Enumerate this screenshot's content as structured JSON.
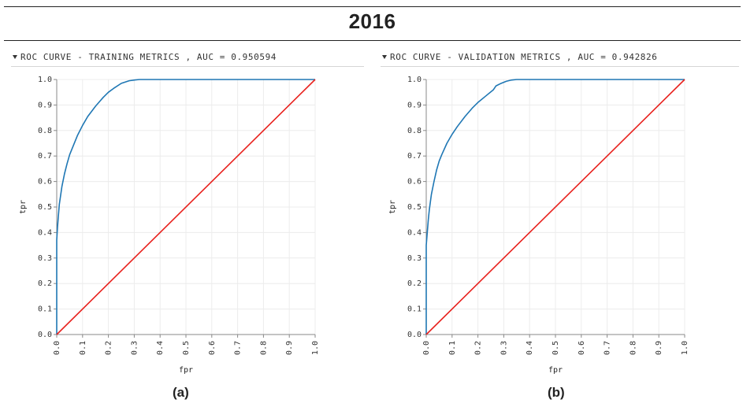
{
  "figure": {
    "title": "2016"
  },
  "panels": [
    {
      "header": "ROC CURVE - TRAINING METRICS , AUC = 0.950594",
      "caption": "(a)"
    },
    {
      "header": "ROC CURVE - VALIDATION METRICS , AUC = 0.942826",
      "caption": "(b)"
    }
  ],
  "colors": {
    "roc": "#1f77b4",
    "diagonal": "#e8211d",
    "grid": "#ececec",
    "axis": "#888888"
  },
  "chart_data": [
    {
      "type": "line",
      "title": "ROC CURVE - TRAINING METRICS , AUC = 0.950594",
      "xlabel": "fpr",
      "ylabel": "tpr",
      "xlim": [
        0,
        1
      ],
      "ylim": [
        0,
        1
      ],
      "xticks": [
        "0.0",
        "0.1",
        "0.2",
        "0.3",
        "0.4",
        "0.5",
        "0.6",
        "0.7",
        "0.8",
        "0.9",
        "1.0"
      ],
      "yticks": [
        "0.0",
        "0.1",
        "0.2",
        "0.3",
        "0.4",
        "0.5",
        "0.6",
        "0.7",
        "0.8",
        "0.9",
        "1.0"
      ],
      "grid": true,
      "series": [
        {
          "x": [
            0,
            0,
            0.003,
            0.006,
            0.01,
            0.02,
            0.03,
            0.04,
            0.05,
            0.06,
            0.08,
            0.1,
            0.12,
            0.15,
            0.18,
            0.2,
            0.22,
            0.25,
            0.28,
            0.3,
            0.32,
            0.35,
            0.4,
            0.5,
            0.6,
            0.7,
            0.8,
            0.9,
            1.0
          ],
          "y": [
            0,
            0.37,
            0.42,
            0.46,
            0.51,
            0.58,
            0.63,
            0.67,
            0.705,
            0.73,
            0.78,
            0.82,
            0.855,
            0.895,
            0.93,
            0.95,
            0.965,
            0.985,
            0.995,
            0.998,
            1.0,
            1.0,
            1.0,
            1.0,
            1.0,
            1.0,
            1.0,
            1.0,
            1.0
          ]
        },
        {
          "x": [
            0,
            1
          ],
          "y": [
            0,
            1
          ]
        }
      ]
    },
    {
      "type": "line",
      "title": "ROC CURVE - VALIDATION METRICS , AUC = 0.942826",
      "xlabel": "fpr",
      "ylabel": "tpr",
      "xlim": [
        0,
        1
      ],
      "ylim": [
        0,
        1
      ],
      "xticks": [
        "0.0",
        "0.1",
        "0.2",
        "0.3",
        "0.4",
        "0.5",
        "0.6",
        "0.7",
        "0.8",
        "0.9",
        "1.0"
      ],
      "yticks": [
        "0.0",
        "0.1",
        "0.2",
        "0.3",
        "0.4",
        "0.5",
        "0.6",
        "0.7",
        "0.8",
        "0.9",
        "1.0"
      ],
      "grid": true,
      "series": [
        {
          "x": [
            0,
            0,
            0.004,
            0.008,
            0.012,
            0.02,
            0.03,
            0.04,
            0.05,
            0.06,
            0.08,
            0.1,
            0.12,
            0.15,
            0.18,
            0.2,
            0.23,
            0.26,
            0.27,
            0.29,
            0.31,
            0.33,
            0.35,
            0.4,
            0.5,
            0.6,
            0.7,
            0.8,
            0.9,
            1.0
          ],
          "y": [
            0,
            0.35,
            0.4,
            0.45,
            0.49,
            0.55,
            0.6,
            0.645,
            0.68,
            0.705,
            0.75,
            0.785,
            0.815,
            0.855,
            0.89,
            0.91,
            0.935,
            0.96,
            0.975,
            0.985,
            0.993,
            0.998,
            1.0,
            1.0,
            1.0,
            1.0,
            1.0,
            1.0,
            1.0,
            1.0
          ]
        },
        {
          "x": [
            0,
            1
          ],
          "y": [
            0,
            1
          ]
        }
      ]
    }
  ]
}
